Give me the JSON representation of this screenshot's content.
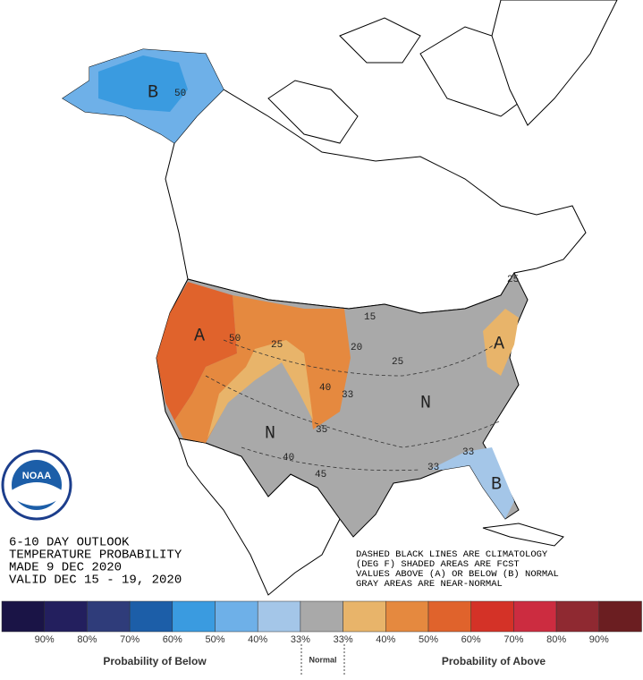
{
  "map": {
    "labels": [
      "B",
      "50",
      "A",
      "50",
      "25",
      "N",
      "40",
      "45",
      "N",
      "B",
      "33",
      "33",
      "A",
      "40",
      "33",
      "25",
      "15",
      "20",
      "35",
      "25"
    ]
  },
  "info": {
    "lines": [
      "6-10 DAY OUTLOOK",
      "TEMPERATURE PROBABILITY",
      "MADE  9 DEC 2020",
      "VALID  DEC 15 - 19, 2020"
    ]
  },
  "notes": {
    "lines": [
      "DASHED BLACK LINES ARE CLIMATOLOGY",
      "(DEG F) SHADED AREAS ARE FCST",
      "VALUES ABOVE (A) OR BELOW (B) NORMAL",
      "GRAY AREAS ARE NEAR-NORMAL"
    ]
  },
  "logo": "NOAA",
  "legend": {
    "colors": [
      "#1a1446",
      "#231f5e",
      "#2f3c7a",
      "#1c5ea8",
      "#3a9be0",
      "#6eb0e8",
      "#a4c6e8",
      "#a9a9a9",
      "#e8b46a",
      "#e5893f",
      "#e0632c",
      "#d43227",
      "#cc2c40",
      "#8f2931",
      "#6b1e21"
    ],
    "labels": [
      "90%",
      "80%",
      "70%",
      "60%",
      "50%",
      "40%",
      "33%",
      "33%",
      "40%",
      "50%",
      "60%",
      "70%",
      "80%",
      "90%"
    ],
    "below": "Probability of Below",
    "normal": "Normal",
    "above": "Probability of Above"
  }
}
